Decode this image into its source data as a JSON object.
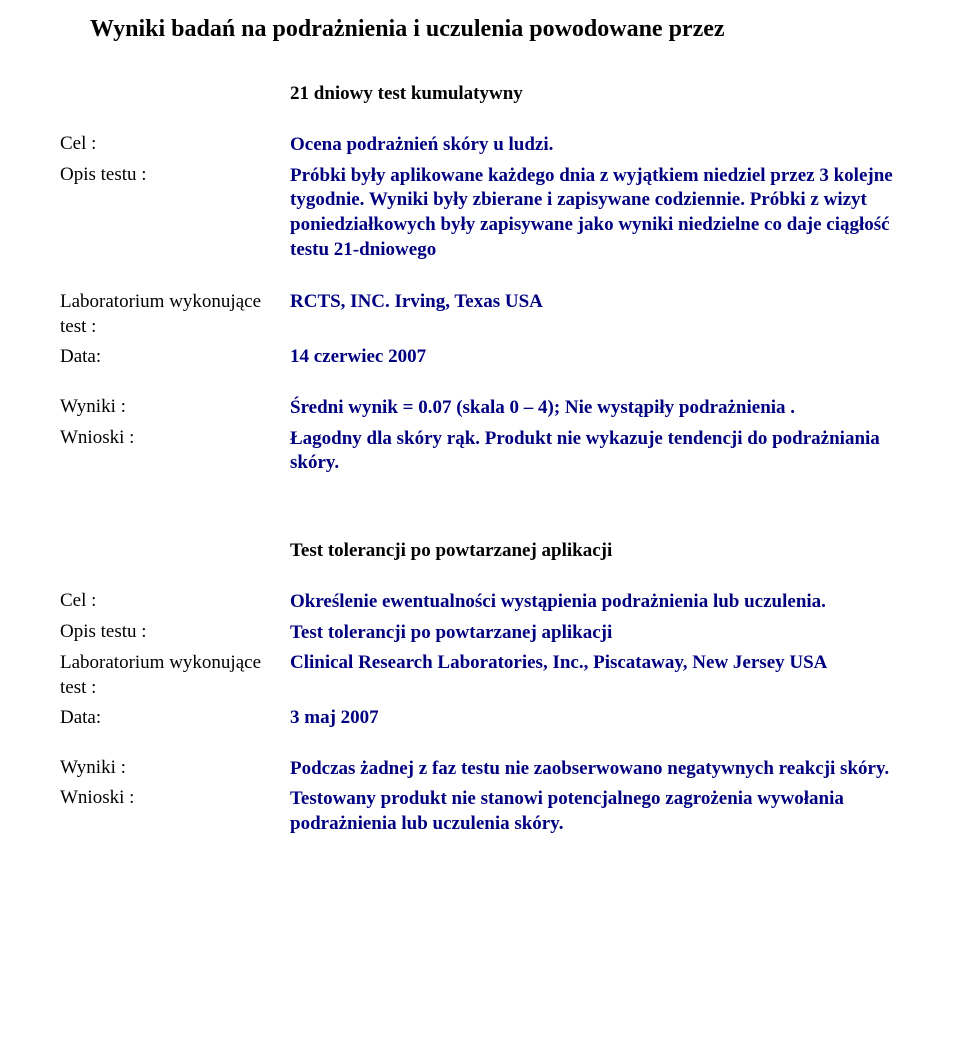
{
  "title": "Wyniki badań na podrażnienia i uczulenia powodowane przez",
  "section1": {
    "subtitle": "21 dniowy test kumulatywny",
    "rows": {
      "cel_label": "Cel :",
      "cel_value": "Ocena podrażnień skóry u ludzi.",
      "opis_label": "Opis testu :",
      "opis_value": "Próbki były aplikowane każdego dnia z wyjątkiem niedziel przez 3 kolejne tygodnie. Wyniki były zbierane i zapisywane codziennie. Próbki z wizyt poniedziałkowych były zapisywane jako wyniki niedzielne co daje ciągłość testu 21-dniowego",
      "lab_label": "Laboratorium wykonujące test :",
      "lab_value": "RCTS, INC. Irving, Texas USA",
      "data_label": "Data:",
      "data_value": "14 czerwiec 2007",
      "wyniki_label": "Wyniki :",
      "wyniki_value": "Średni wynik  = 0.07 (skala 0 – 4); Nie wystąpiły podrażnienia .",
      "wnioski_label": "Wnioski :",
      "wnioski_value": "Łagodny dla skóry rąk. Produkt nie wykazuje tendencji do podrażniania skóry."
    }
  },
  "section2": {
    "subtitle": "Test tolerancji po powtarzanej aplikacji",
    "rows": {
      "cel_label": "Cel :",
      "cel_value": "Określenie ewentualności wystąpienia podrażnienia lub uczulenia.",
      "opis_label": "Opis testu :",
      "opis_value": "Test tolerancji po powtarzanej aplikacji",
      "lab_label": "Laboratorium wykonujące test :",
      "lab_value": "Clinical Research Laboratories, Inc., Piscataway, New Jersey USA",
      "data_label": "Data:",
      "data_value": "3 maj 2007",
      "wyniki_label": "Wyniki :",
      "wyniki_value": "Podczas żadnej z faz testu nie zaobserwowano negatywnych reakcji skóry.",
      "wnioski_label": "Wnioski :",
      "wnioski_value": "Testowany produkt nie stanowi potencjalnego zagrożenia wywołania podrażnienia lub uczulenia skóry."
    }
  }
}
